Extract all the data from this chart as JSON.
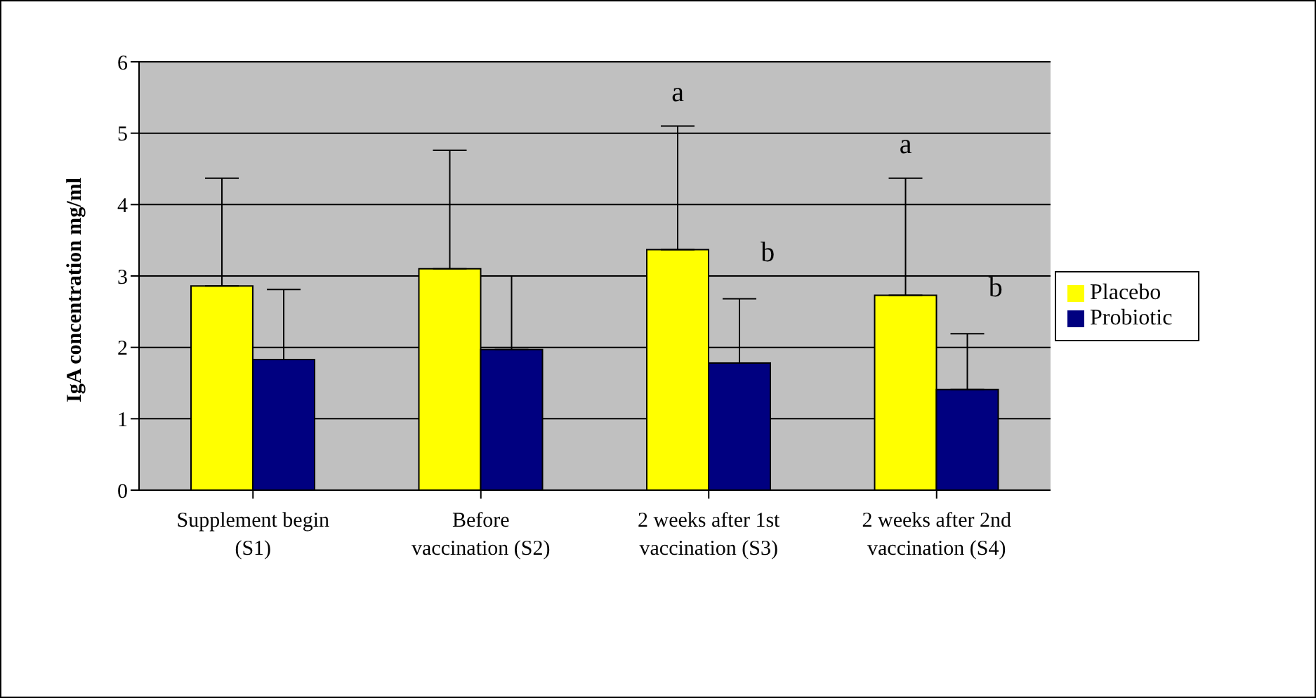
{
  "chart_data": {
    "type": "bar",
    "ylabel": "IgA concentration mg/ml",
    "categories": [
      "Supplement begin (S1)",
      "Before vaccination (S2)",
      "2 weeks after 1st vaccination (S3)",
      "2 weeks after 2nd vaccination (S4)"
    ],
    "series": [
      {
        "name": "Placebo",
        "color": "#ffff00",
        "values": [
          2.86,
          3.1,
          3.37,
          2.73
        ],
        "errors": [
          [
            2.86,
            4.37
          ],
          [
            3.1,
            4.76
          ],
          [
            3.37,
            5.1
          ],
          [
            2.73,
            4.37
          ]
        ]
      },
      {
        "name": "Probiotic",
        "color": "#000080",
        "values": [
          1.83,
          1.97,
          1.78,
          1.41
        ],
        "errors": [
          [
            1.83,
            2.81
          ],
          [
            1.97,
            3.0
          ],
          [
            1.78,
            2.68
          ],
          [
            1.41,
            2.19
          ]
        ]
      }
    ],
    "ylim": [
      0,
      6
    ],
    "yticks": [
      0,
      1,
      2,
      3,
      4,
      5,
      6
    ],
    "grid": "y",
    "legend": "right",
    "annotations": [
      "a",
      "b",
      "a",
      "b"
    ]
  }
}
